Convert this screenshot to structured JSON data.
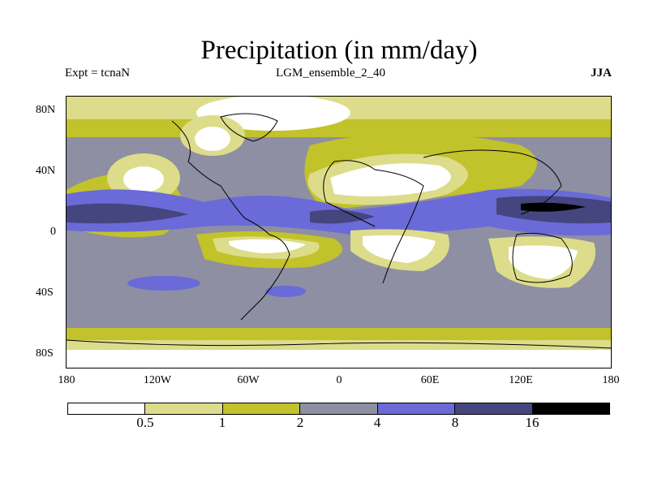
{
  "title": "Precipitation (in mm/day)",
  "experiment": "Expt = tcnaN",
  "ensemble": "LGM_ensemble_2_40",
  "season": "JJA",
  "lat_ticks": [
    "80N",
    "40N",
    "0",
    "40S",
    "80S"
  ],
  "lon_ticks": [
    "180",
    "120W",
    "60W",
    "0",
    "60E",
    "120E",
    "180"
  ],
  "colorbar": {
    "labels": [
      "0.5",
      "1",
      "2",
      "4",
      "8",
      "16"
    ],
    "colors": [
      "#ffffff",
      "#dcdc8a",
      "#c2c22a",
      "#8e8fa2",
      "#6a6ad8",
      "#45457f",
      "#000000"
    ]
  }
}
